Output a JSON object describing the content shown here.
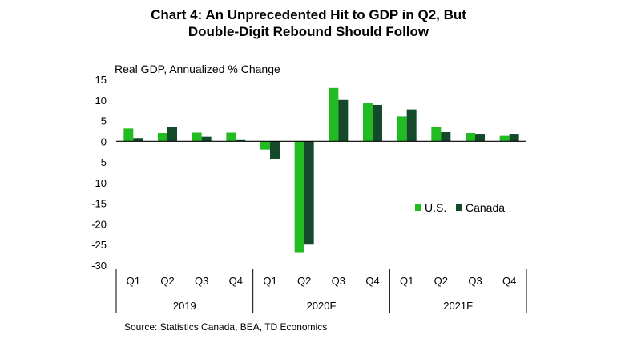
{
  "chart_data": {
    "type": "bar",
    "title_line1": "Chart 4: An Unprecedented Hit to GDP in Q2, But",
    "title_line2": "Double-Digit Rebound Should Follow",
    "ylabel": "Real GDP, Annualized % Change",
    "ylim": [
      -30,
      15
    ],
    "yticks": [
      15,
      10,
      5,
      0,
      -5,
      -10,
      -15,
      -20,
      -25,
      -30
    ],
    "categories": [
      "Q1",
      "Q2",
      "Q3",
      "Q4",
      "Q1",
      "Q2",
      "Q3",
      "Q4",
      "Q1",
      "Q2",
      "Q3",
      "Q4"
    ],
    "groups": [
      {
        "label": "2019",
        "count": 4
      },
      {
        "label": "2020F",
        "count": 4
      },
      {
        "label": "2021F",
        "count": 4
      }
    ],
    "series": [
      {
        "name": "U.S.",
        "color": "#22bb22",
        "values": [
          3.1,
          2.0,
          2.1,
          2.1,
          -2.0,
          -27.0,
          12.9,
          9.2,
          6.0,
          3.5,
          2.0,
          1.3
        ]
      },
      {
        "name": "Canada",
        "color": "#144a2a",
        "values": [
          0.8,
          3.5,
          1.1,
          0.3,
          -4.2,
          -25.0,
          10.0,
          8.8,
          7.7,
          2.2,
          1.8,
          1.8
        ]
      }
    ],
    "legend_position": "right",
    "grid": false
  },
  "footer": "Source: Statistics Canada, BEA, TD Economics"
}
